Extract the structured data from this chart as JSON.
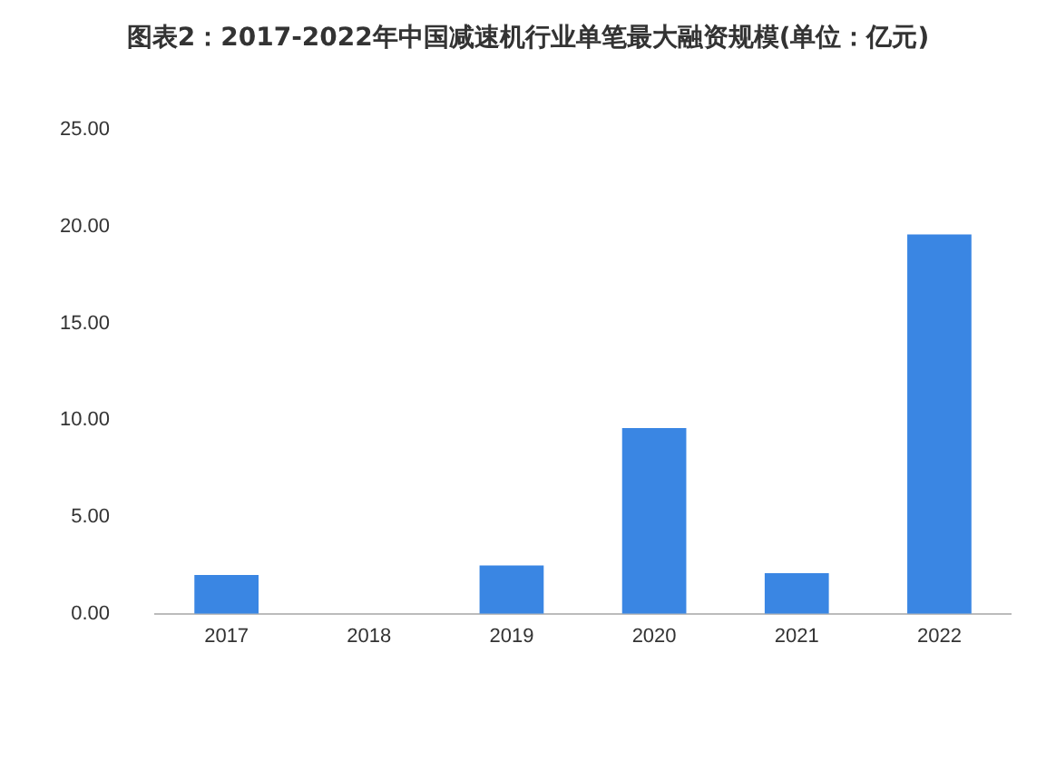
{
  "chart_data": {
    "type": "bar",
    "title": "图表2：2017-2022年中国减速机行业单笔最大融资规模(单位：亿元)",
    "categories": [
      "2017",
      "2018",
      "2019",
      "2020",
      "2021",
      "2022"
    ],
    "values": [
      2.0,
      0,
      2.5,
      9.6,
      2.1,
      19.6
    ],
    "color": "#3a86e3",
    "ylim": [
      0,
      25
    ],
    "yticks": [
      {
        "value": 0,
        "label": "0.00"
      },
      {
        "value": 5,
        "label": "5.00"
      },
      {
        "value": 10,
        "label": "10.00"
      },
      {
        "value": 15,
        "label": "15.00"
      },
      {
        "value": 20,
        "label": "20.00"
      },
      {
        "value": 25,
        "label": "25.00"
      }
    ],
    "grid": false,
    "legend": false
  }
}
